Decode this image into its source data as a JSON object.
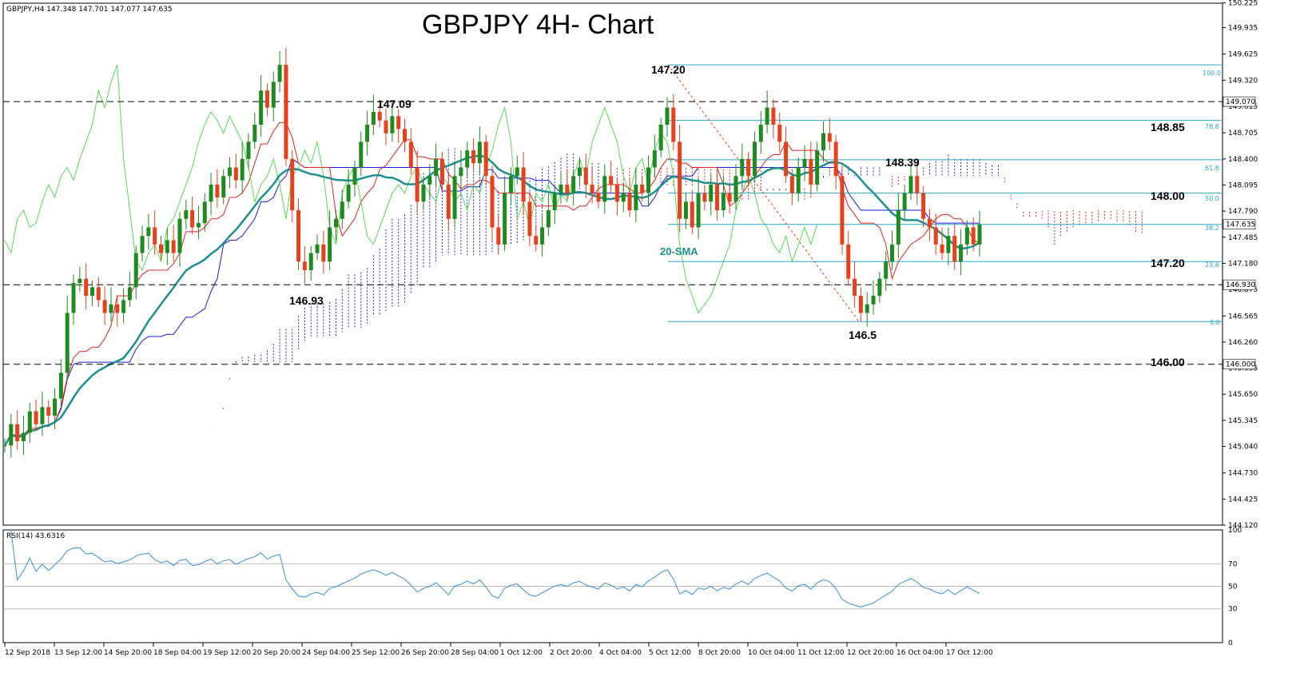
{
  "header": {
    "symbol_info": "GBPJPY,H4  147.348 147.701 147.077 147.635",
    "title": "GBPJPY 4H- Chart"
  },
  "colors": {
    "bull": "#1f8a1f",
    "bear": "#e8401c",
    "sma": "#1c8f8f",
    "tenkan": "#e8201c",
    "kijun": "#1a1adb",
    "chikou": "#55dd55",
    "cloud_bear": "#e8201c",
    "cloud_bull": "#2222cc",
    "fib": "#2aa7c9",
    "rsi": "#3a8fd8"
  },
  "chart_data": {
    "type": "candlestick",
    "price_axis": {
      "min": 144.12,
      "max": 150.22,
      "ticks": [
        "150.225",
        "149.935",
        "149.625",
        "149.320",
        "149.015",
        "148.705",
        "148.400",
        "148.095",
        "147.790",
        "147.485",
        "147.180",
        "146.875",
        "146.565",
        "146.260",
        "145.955",
        "145.650",
        "145.345",
        "145.040",
        "144.730",
        "144.425",
        "144.120"
      ]
    },
    "time_labels": [
      "12 Sep 2018",
      "13 Sep 12:00",
      "14 Sep 20:00",
      "18 Sep 04:00",
      "19 Sep 12:00",
      "20 Sep 20:00",
      "24 Sep 04:00",
      "25 Sep 12:00",
      "26 Sep 20:00",
      "28 Sep 04:00",
      "1 Oct 12:00",
      "2 Oct 20:00",
      "4 Oct 04:00",
      "5 Oct 12:00",
      "8 Oct 20:00",
      "10 Oct 04:00",
      "11 Oct 12:00",
      "12 Oct 20:00",
      "16 Oct 04:00",
      "17 Oct 12:00"
    ],
    "closes": [
      145.05,
      145.3,
      145.1,
      145.2,
      145.45,
      145.3,
      145.5,
      145.4,
      145.6,
      145.9,
      146.6,
      146.95,
      147.0,
      146.8,
      146.9,
      146.75,
      146.6,
      146.7,
      146.6,
      146.75,
      146.9,
      147.3,
      147.5,
      147.6,
      147.4,
      147.3,
      147.45,
      147.3,
      147.7,
      147.8,
      147.6,
      147.65,
      147.9,
      148.1,
      147.95,
      148.2,
      148.3,
      148.15,
      148.4,
      148.6,
      148.8,
      149.2,
      149.0,
      149.3,
      149.5,
      148.4,
      147.8,
      147.2,
      147.1,
      147.3,
      147.4,
      147.2,
      147.6,
      147.7,
      147.9,
      148.1,
      148.3,
      148.6,
      148.8,
      148.95,
      148.85,
      148.7,
      148.9,
      148.75,
      148.6,
      148.3,
      147.9,
      148.1,
      148.2,
      148.4,
      148.1,
      147.7,
      148.2,
      148.3,
      148.5,
      148.35,
      148.6,
      148.2,
      147.6,
      147.4,
      148.0,
      148.2,
      148.3,
      147.9,
      147.5,
      147.4,
      147.6,
      147.8,
      148.0,
      148.1,
      148.0,
      148.2,
      148.3,
      148.1,
      148.0,
      147.9,
      148.2,
      148.1,
      147.9,
      148.0,
      147.8,
      148.1,
      148.0,
      148.3,
      148.5,
      148.8,
      149.0,
      148.6,
      147.7,
      147.9,
      147.6,
      148.0,
      147.9,
      148.1,
      147.8,
      148.0,
      147.9,
      148.2,
      148.4,
      148.2,
      148.6,
      148.8,
      149.0,
      148.8,
      148.6,
      148.2,
      148.0,
      148.3,
      148.4,
      148.1,
      148.5,
      148.7,
      148.6,
      148.2,
      147.4,
      147.0,
      146.8,
      146.6,
      146.7,
      146.8,
      147.0,
      147.2,
      147.4,
      147.8,
      148.0,
      148.2,
      148.0,
      147.7,
      147.6,
      147.4,
      147.3,
      147.5,
      147.2,
      147.4,
      147.6,
      147.4,
      147.635
    ],
    "rsi": {
      "label": "RSI(14) 43.6316",
      "axis_ticks": [
        "100",
        "70",
        "50",
        "30",
        "0"
      ],
      "levels": [
        70,
        50,
        30
      ],
      "current": 43.6316
    },
    "annotations": {
      "title_levels": [
        "147.20",
        "147.09",
        "146.93",
        "148.39",
        "146.5"
      ],
      "sma_label": "20-SMA"
    },
    "support_resistance": [
      {
        "price": 149.07,
        "label": ""
      },
      {
        "price": 146.93,
        "label": ""
      },
      {
        "price": 146.0,
        "label": "146.00"
      }
    ],
    "horizontal_labels": [
      "148.85",
      "148.00",
      "147.20"
    ],
    "fib_levels": [
      {
        "label": "100.0"
      },
      {
        "label": "78.6"
      },
      {
        "label": "61.8"
      },
      {
        "label": "50.0"
      },
      {
        "label": "38.2"
      },
      {
        "label": "23.6"
      },
      {
        "label": "0.0"
      }
    ],
    "price_tags": [
      {
        "label": "149.070"
      },
      {
        "label": "147.635"
      },
      {
        "label": "146.930"
      },
      {
        "label": "146.000"
      }
    ]
  }
}
